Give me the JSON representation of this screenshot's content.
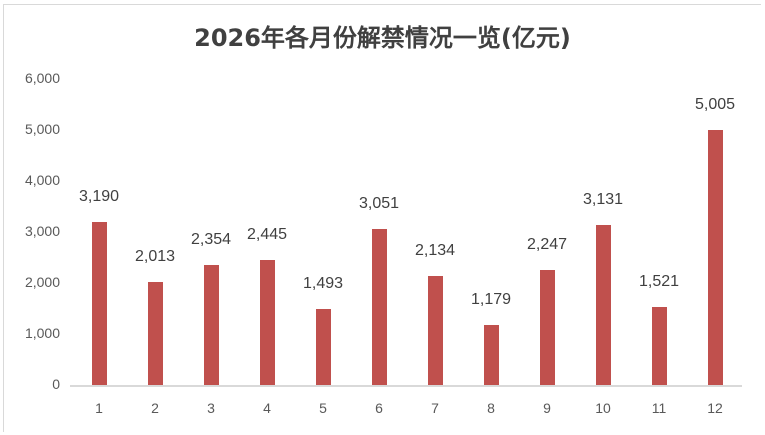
{
  "chart_data": {
    "type": "bar",
    "title": "2026年各月份解禁情况一览(亿元)",
    "xlabel": "",
    "ylabel": "",
    "categories": [
      "1",
      "2",
      "3",
      "4",
      "5",
      "6",
      "7",
      "8",
      "9",
      "10",
      "11",
      "12"
    ],
    "values": [
      3190,
      2013,
      2354,
      2445,
      1493,
      3051,
      2134,
      1179,
      2247,
      3131,
      1521,
      5005
    ],
    "value_labels": [
      "3,190",
      "2,013",
      "2,354",
      "2,445",
      "1,493",
      "3,051",
      "2,134",
      "1,179",
      "2,247",
      "3,131",
      "1,521",
      "5,005"
    ],
    "yticks": [
      "0",
      "1,000",
      "2,000",
      "3,000",
      "4,000",
      "5,000",
      "6,000"
    ],
    "ylim": [
      0,
      6000
    ],
    "grid": false,
    "legend": null,
    "bar_color": "#c0504d"
  }
}
